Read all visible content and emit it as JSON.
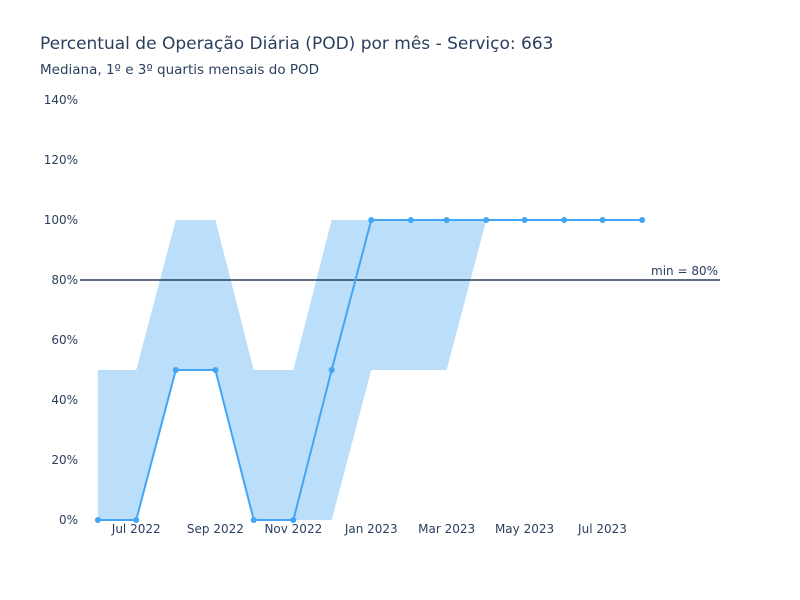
{
  "chart_data": {
    "type": "line",
    "title": "Percentual de Operação Diária (POD) por mês - Serviço: 663",
    "subtitle": "Mediana, 1º e 3º quartis mensais do POD",
    "x": [
      "2022-06-01",
      "2022-07-01",
      "2022-08-01",
      "2022-09-01",
      "2022-10-01",
      "2022-11-01",
      "2022-12-01",
      "2023-01-01",
      "2023-02-01",
      "2023-03-01",
      "2023-04-01",
      "2023-05-01",
      "2023-06-01",
      "2023-07-01",
      "2023-08-01"
    ],
    "series": [
      {
        "role": "median",
        "values": [
          0,
          0,
          50,
          50,
          0,
          0,
          50,
          100,
          100,
          100,
          100,
          100,
          100,
          100,
          100
        ]
      },
      {
        "role": "q1",
        "values": [
          0,
          0,
          50,
          50,
          0,
          0,
          0,
          50,
          50,
          50,
          100,
          100,
          100,
          100,
          100
        ]
      },
      {
        "role": "q3",
        "values": [
          50,
          50,
          100,
          100,
          50,
          50,
          100,
          100,
          100,
          100,
          100,
          100,
          100,
          100,
          100
        ]
      }
    ],
    "x_ticks": [
      {
        "date": "2022-07-01",
        "label": "Jul 2022"
      },
      {
        "date": "2022-09-01",
        "label": "Sep 2022"
      },
      {
        "date": "2022-11-01",
        "label": "Nov 2022"
      },
      {
        "date": "2023-01-01",
        "label": "Jan 2023"
      },
      {
        "date": "2023-03-01",
        "label": "Mar 2023"
      },
      {
        "date": "2023-05-01",
        "label": "May 2023"
      },
      {
        "date": "2023-07-01",
        "label": "Jul 2023"
      }
    ],
    "y_ticks": [
      "0%",
      "20%",
      "40%",
      "60%",
      "80%",
      "100%",
      "120%",
      "140%"
    ],
    "y_tick_values": [
      0,
      20,
      40,
      60,
      80,
      100,
      120,
      140
    ],
    "ylim": [
      0,
      140
    ],
    "xlim": [
      "2022-05-18",
      "2023-10-01"
    ],
    "threshold": {
      "value": 80,
      "label": "min = 80%"
    },
    "grid": false,
    "colors": {
      "line": "#42a5f5",
      "band": "#bbdefb",
      "threshold": "#2a3f5f",
      "text": "#2a3f5f"
    }
  }
}
